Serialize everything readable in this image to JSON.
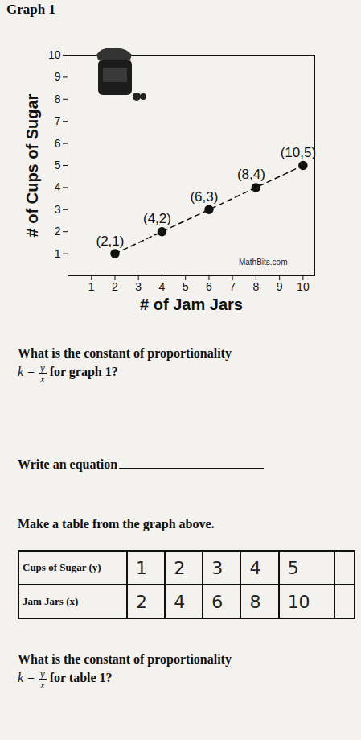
{
  "chart_data": {
    "type": "line",
    "title": "Graph 1",
    "x_label": "# of Jam Jars",
    "y_label": "# of Cups of Sugar",
    "x": [
      2,
      4,
      6,
      8,
      10
    ],
    "values": [
      1,
      2,
      3,
      4,
      5
    ],
    "point_labels": [
      "(2,1)",
      "(4,2)",
      "(6,3)",
      "(8,4)",
      "(10,5)"
    ],
    "color": "#111111",
    "marker": "circle",
    "line_style": "dashed",
    "xlim": [
      0,
      10.5
    ],
    "ylim": [
      0,
      10
    ],
    "xticks": [
      1,
      2,
      3,
      4,
      5,
      6,
      7,
      8,
      9,
      10
    ],
    "yticks": [
      1,
      2,
      3,
      4,
      5,
      6,
      7,
      8,
      9,
      10
    ],
    "grid": false,
    "annotations": [
      {
        "text": "MathBits.com",
        "x": 8.3,
        "y": 0.6
      }
    ]
  },
  "document": {
    "question_1": {
      "text": "What is the constant of proportionality",
      "lhs": "k =",
      "numerator": "y",
      "denominator": "x",
      "after": "for graph 1?"
    },
    "question_2": {
      "text": "Write an equation"
    },
    "instruction": {
      "text": "Make a table from the graph above."
    },
    "table": {
      "rows": [
        {
          "header": "Cups of Sugar (y)",
          "cells": [
            1,
            2,
            3,
            4,
            5
          ]
        },
        {
          "header": "Jam Jars (x)",
          "cells": [
            2,
            4,
            6,
            8,
            10
          ]
        }
      ]
    },
    "question_3": {
      "text": "What is the constant of proportionality",
      "lhs": "k =",
      "numerator": "y",
      "denominator": "x",
      "after": "for table 1?"
    }
  }
}
